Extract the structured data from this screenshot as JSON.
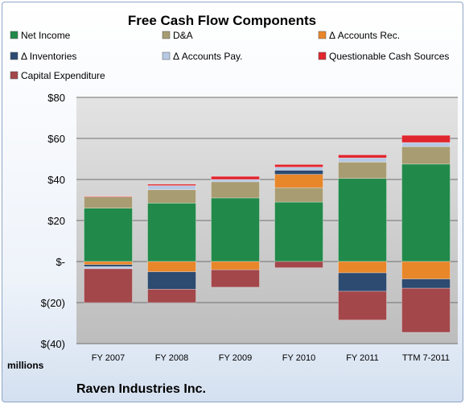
{
  "chart_data": {
    "type": "bar",
    "stacked": true,
    "title": "Free Cash Flow Components",
    "unit_label": "millions",
    "company": "Raven Industries Inc.",
    "categories": [
      "FY 2007",
      "FY 2008",
      "FY 2009",
      "FY 2010",
      "FY 2011",
      "TTM 7-2011"
    ],
    "ylim": [
      -40,
      80
    ],
    "yticks": [
      {
        "value": 80,
        "label": "$80"
      },
      {
        "value": 60,
        "label": "$60"
      },
      {
        "value": 40,
        "label": "$40"
      },
      {
        "value": 20,
        "label": "$20"
      },
      {
        "value": 0,
        "label": "$-"
      },
      {
        "value": -20,
        "label": "$(20)"
      },
      {
        "value": -40,
        "label": "$(40)"
      }
    ],
    "grid": true,
    "legend_position": "top",
    "series": [
      {
        "name": "Net Income",
        "color": "#218a4a",
        "values": [
          26,
          28.5,
          31,
          29,
          40.5,
          47.5
        ]
      },
      {
        "name": "D&A",
        "color": "#a89c72",
        "values": [
          5.5,
          6.5,
          8,
          7,
          8,
          8.5
        ]
      },
      {
        "name": "Δ Accounts Rec.",
        "color": "#e8862a",
        "values": [
          -1.5,
          -5,
          -4,
          6.5,
          -5.5,
          -8.5
        ]
      },
      {
        "name": "Δ Inventories",
        "color": "#2d4a70",
        "values": [
          -1,
          -8.5,
          0,
          2,
          -9,
          -4.5
        ]
      },
      {
        "name": "Δ Accounts Pay.",
        "color": "#b7c9e4",
        "values": [
          -1,
          2,
          1,
          1.5,
          2,
          2
        ]
      },
      {
        "name": "Questionable Cash Sources",
        "color": "#e0262e",
        "values": [
          0.3,
          0.7,
          1.5,
          1.3,
          1.5,
          3.5
        ]
      },
      {
        "name": "Capital Expenditure",
        "color": "#a3474b",
        "values": [
          -16.5,
          -6.5,
          -8.5,
          -3,
          -14,
          -21.5
        ]
      }
    ]
  }
}
